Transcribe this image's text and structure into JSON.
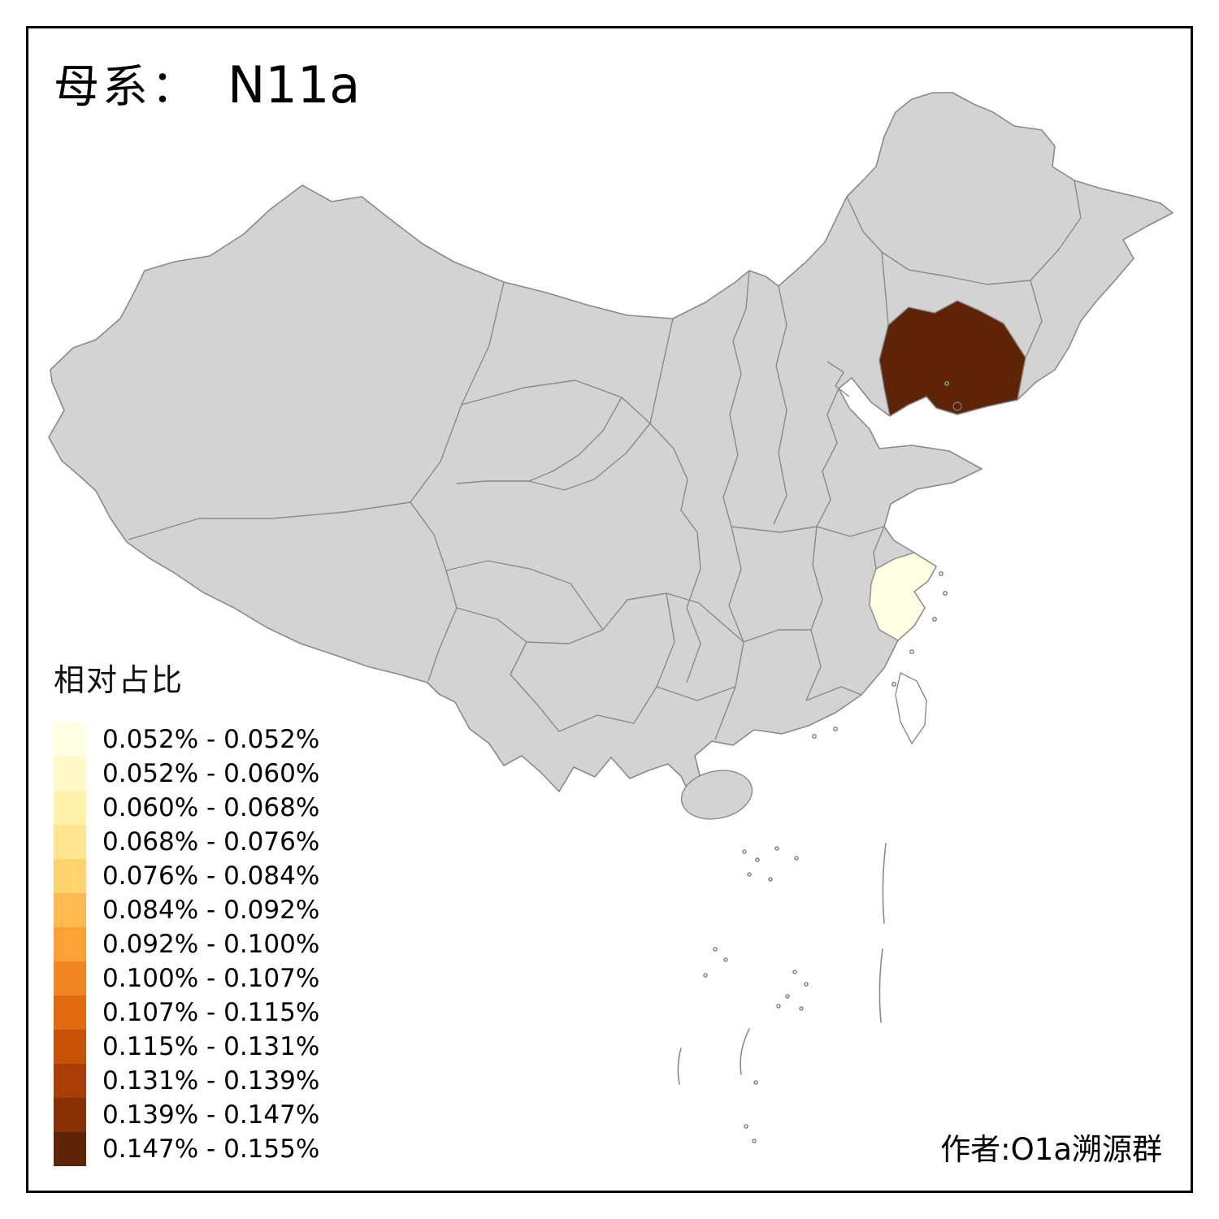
{
  "title": {
    "prefix": "母系：",
    "value": "N11a"
  },
  "legend": {
    "title": "相对占比",
    "items": [
      {
        "range": "0.052% - 0.052%",
        "color": "#FFFFE3"
      },
      {
        "range": "0.052% - 0.060%",
        "color": "#FFF9C7"
      },
      {
        "range": "0.060% - 0.068%",
        "color": "#FEF2AA"
      },
      {
        "range": "0.068% - 0.076%",
        "color": "#FEE58E"
      },
      {
        "range": "0.076% - 0.084%",
        "color": "#FED36F"
      },
      {
        "range": "0.084% - 0.092%",
        "color": "#FEBA50"
      },
      {
        "range": "0.092% - 0.100%",
        "color": "#FCA136"
      },
      {
        "range": "0.100% - 0.107%",
        "color": "#F08522"
      },
      {
        "range": "0.107% - 0.115%",
        "color": "#E06A10"
      },
      {
        "range": "0.115% - 0.131%",
        "color": "#C85207"
      },
      {
        "range": "0.131% - 0.139%",
        "color": "#A83E05"
      },
      {
        "range": "0.139% - 0.147%",
        "color": "#873005"
      },
      {
        "range": "0.147% - 0.155%",
        "color": "#5E2407"
      }
    ]
  },
  "attribution": "作者:O1a溯源群",
  "map": {
    "base_fill": "#D3D3D3",
    "border_color": "#8A8A8A",
    "no_data_fill": "#FFFFFF",
    "highlighted": [
      {
        "region": "liaoning",
        "color": "#5E2407",
        "range": "0.147% - 0.155%"
      },
      {
        "region": "zhejiang",
        "color": "#FFFFE3",
        "range": "0.052% - 0.052%"
      }
    ]
  }
}
